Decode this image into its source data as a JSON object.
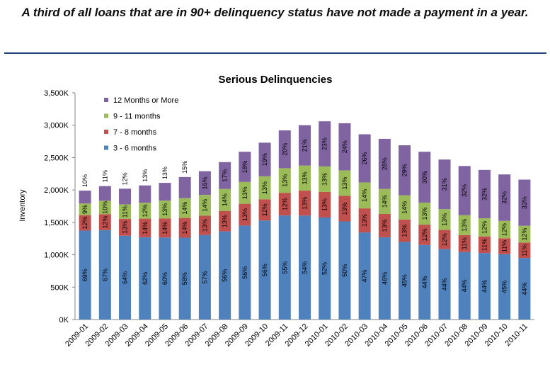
{
  "headline": "A third of all loans that are in 90+ delinquency status have not made a payment in a year.",
  "chart_data": {
    "type": "bar",
    "stacked": true,
    "title": "Serious Delinquencies",
    "xlabel": "",
    "ylabel": "Inventory",
    "ylim": [
      0,
      3500000
    ],
    "yticks": [
      0,
      500000,
      1000000,
      1500000,
      2000000,
      2500000,
      3000000,
      3500000
    ],
    "ytick_labels": [
      "0K",
      "500K",
      "1,000K",
      "1,500K",
      "2,000K",
      "2,500K",
      "3,000K",
      "3,500K"
    ],
    "grid": false,
    "legend_position": "top-left",
    "categories": [
      "2009-01",
      "2009-02",
      "2009-03",
      "2009-04",
      "2009-05",
      "2009-06",
      "2009-07",
      "2009-08",
      "2009-09",
      "2009-10",
      "2009-11",
      "2009-12",
      "2010-01",
      "2010-02",
      "2010-03",
      "2010-04",
      "2010-05",
      "2010-06",
      "2010-07",
      "2010-08",
      "2010-09",
      "2010-10",
      "2010-11"
    ],
    "totals": [
      1990000,
      2060000,
      2020000,
      2070000,
      2110000,
      2200000,
      2290000,
      2430000,
      2590000,
      2730000,
      2920000,
      3000000,
      3060000,
      3030000,
      2860000,
      2790000,
      2690000,
      2590000,
      2470000,
      2370000,
      2310000,
      2240000,
      2160000
    ],
    "series": [
      {
        "name": "3 - 6 months",
        "color": "#4f81bd",
        "percents": [
          69,
          67,
          64,
          62,
          60,
          58,
          57,
          56,
          56,
          56,
          55,
          54,
          52,
          50,
          47,
          46,
          45,
          44,
          44,
          44,
          44,
          45,
          44
        ],
        "labels": [
          "69%",
          "67%",
          "64%",
          "62%",
          "60%",
          "58%",
          "57%",
          "56%",
          "56%",
          "56%",
          "55%",
          "54%",
          "52%",
          "50%",
          "47%",
          "46%",
          "45%",
          "44%",
          "44%",
          "44%",
          "44%",
          "45%",
          "44%"
        ]
      },
      {
        "name": "7 - 8 months",
        "color": "#c0504d",
        "percents": [
          12,
          12,
          13,
          14,
          14,
          14,
          13,
          13,
          13,
          12,
          12,
          13,
          13,
          13,
          13,
          13,
          13,
          12,
          12,
          11,
          11,
          11,
          11
        ],
        "labels": [
          "12%",
          "12%",
          "13%",
          "14%",
          "14%",
          "14%",
          "13%",
          "13%",
          "13%",
          "12%",
          "12%",
          "13%",
          "13%",
          "13%",
          "13%",
          "13%",
          "13%",
          "12%",
          "12%",
          "11%",
          "11%",
          "11%",
          "11%"
        ]
      },
      {
        "name": "9 - 11 months",
        "color": "#9bbb59",
        "percents": [
          9,
          10,
          11,
          12,
          13,
          14,
          14,
          14,
          13,
          13,
          13,
          13,
          13,
          13,
          14,
          14,
          14,
          13,
          13,
          13,
          12,
          12,
          12
        ],
        "labels": [
          "9%",
          "10%",
          "11%",
          "12%",
          "13%",
          "14%",
          "14%",
          "14%",
          "13%",
          "13%",
          "13%",
          "13%",
          "13%",
          "13%",
          "14%",
          "14%",
          "14%",
          "13%",
          "13%",
          "13%",
          "12%",
          "12%",
          "12%"
        ]
      },
      {
        "name": "12 Months or More",
        "color": "#8064a2",
        "percents": [
          10,
          11,
          12,
          13,
          13,
          15,
          16,
          17,
          18,
          19,
          20,
          21,
          23,
          24,
          26,
          28,
          29,
          30,
          31,
          32,
          32,
          32,
          33
        ],
        "labels": [
          "10%",
          "11%",
          "12%",
          "13%",
          "13%",
          "15%",
          "16%",
          "17%",
          "18%",
          "19%",
          "20%",
          "21%",
          "23%",
          "24%",
          "26%",
          "28%",
          "29%",
          "30%",
          "31%",
          "32%",
          "32%",
          "32%",
          "33%"
        ]
      }
    ]
  }
}
